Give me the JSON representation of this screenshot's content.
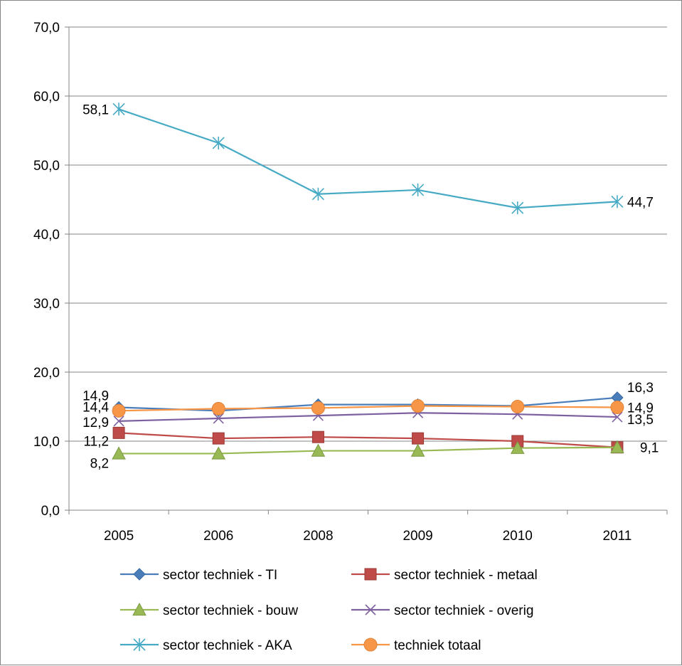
{
  "chart_data": {
    "type": "line",
    "title": "",
    "xlabel": "",
    "ylabel": "",
    "categories": [
      "2005",
      "2006",
      "2008",
      "2009",
      "2010",
      "2011"
    ],
    "ylim": [
      0,
      70
    ],
    "yticks": [
      "0,0",
      "10,0",
      "20,0",
      "30,0",
      "40,0",
      "50,0",
      "60,0",
      "70,0"
    ],
    "grid": true,
    "legend_position": "bottom",
    "series": [
      {
        "name": "sector techniek - TI",
        "color": "#4a7ebb",
        "marker": "diamond",
        "values": [
          14.9,
          14.4,
          15.3,
          15.3,
          15.1,
          16.3
        ],
        "labels": {
          "first": "14,9",
          "last": "16,3"
        }
      },
      {
        "name": "sector techniek - metaal",
        "color": "#be4b48",
        "marker": "square",
        "values": [
          11.2,
          10.4,
          10.6,
          10.4,
          10.0,
          9.1
        ],
        "labels": {
          "first": "11,2",
          "last": "9,1"
        }
      },
      {
        "name": "sector techniek - bouw",
        "color": "#98b954",
        "marker": "triangle",
        "values": [
          8.2,
          8.2,
          8.6,
          8.6,
          9.0,
          9.1
        ],
        "labels": {
          "first": "8,2",
          "last": ""
        }
      },
      {
        "name": "sector techniek - overig",
        "color": "#7d60a0",
        "marker": "x",
        "values": [
          12.9,
          13.3,
          13.7,
          14.1,
          13.9,
          13.5
        ],
        "labels": {
          "first": "12,9",
          "last": "13,5"
        }
      },
      {
        "name": "sector techniek - AKA",
        "color": "#46aac5",
        "marker": "star",
        "values": [
          58.1,
          53.2,
          45.8,
          46.4,
          43.8,
          44.7
        ],
        "labels": {
          "first": "58,1",
          "last": "44,7"
        }
      },
      {
        "name": "techniek totaal",
        "color": "#f79646",
        "marker": "circle",
        "values": [
          14.4,
          14.7,
          14.8,
          15.1,
          15.0,
          14.9
        ],
        "labels": {
          "first": "14,4",
          "last": "14,9"
        }
      }
    ]
  }
}
